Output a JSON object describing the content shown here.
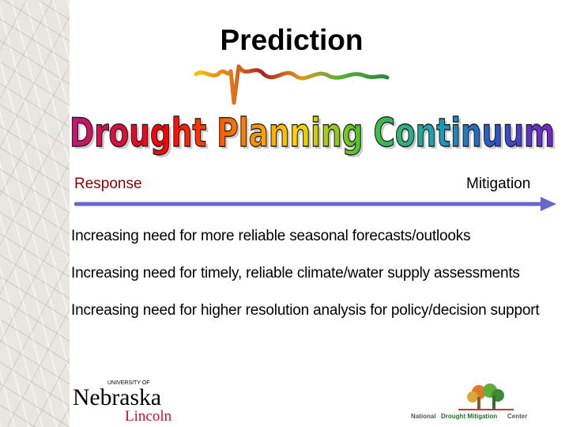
{
  "slide": {
    "title": "Prediction",
    "banner": "Drought Planning Continuum",
    "banner_colors": [
      "#c0187a",
      "#ff0000",
      "#ff6a00",
      "#ffd400",
      "#49c32a",
      "#1ba3b8",
      "#2a54c9",
      "#7a22c9"
    ],
    "continuum": {
      "left_label": "Response",
      "right_label": "Mitigation",
      "arrow_color": "#6666cc"
    },
    "bullets": [
      "Increasing need for more reliable seasonal forecasts/outlooks",
      "Increasing need for timely, reliable climate/water supply assessments",
      "Increasing need for higher resolution analysis for policy/decision support"
    ],
    "logos": {
      "left": {
        "university": "UNIVERSITY OF",
        "name": "Nebraska",
        "campus": "Lincoln"
      },
      "right": {
        "part1": "National",
        "part2": "Drought Mitigation",
        "part3": "Center"
      }
    }
  }
}
